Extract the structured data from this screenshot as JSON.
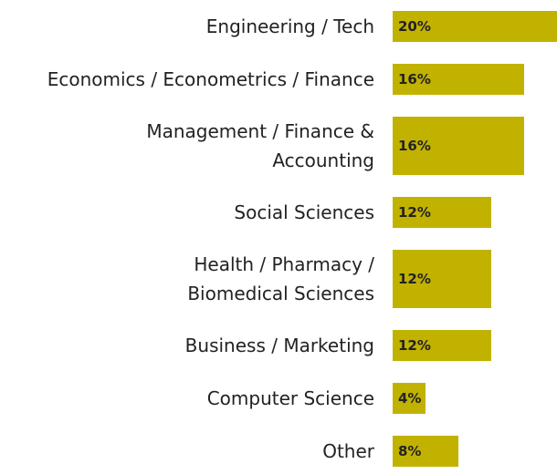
{
  "chart_data": {
    "type": "bar",
    "orientation": "horizontal",
    "categories": [
      "Engineering / Tech",
      "Economics / Econometrics / Finance",
      "Management / Finance & Accounting",
      "Social Sciences",
      "Health / Pharmacy / Biomedical Sciences",
      "Business / Marketing",
      "Computer Science",
      "Other"
    ],
    "values": [
      20,
      16,
      16,
      12,
      12,
      12,
      4,
      8
    ],
    "value_labels": [
      "20%",
      "16%",
      "16%",
      "12%",
      "12%",
      "12%",
      "4%",
      "8%"
    ],
    "color": "#c2b200",
    "xlim": [
      0,
      20
    ]
  }
}
